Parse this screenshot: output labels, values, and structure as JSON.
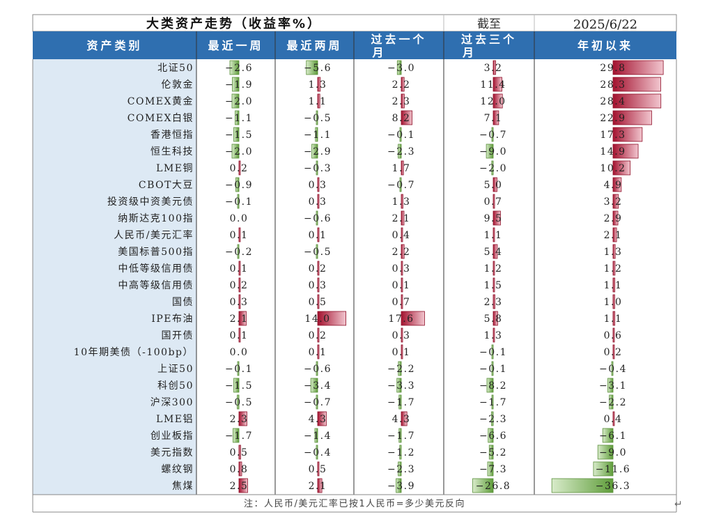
{
  "title": "大类资产走势（收益率%）",
  "date_label": "截至",
  "date_value": "2025/6/22",
  "note": "注：人民币/美元汇率已按1人民币=多少美元反向",
  "colors": {
    "header_bg": "#2f6fb0",
    "label_bg": "#dde9f4",
    "positive": "#a3122f",
    "negative": "#70ad47"
  },
  "chart_data": {
    "type": "table",
    "columns": [
      "资产类别",
      "最近一周",
      "最近两周",
      "过去一个月",
      "过去三个月",
      "年初以来"
    ],
    "rows": [
      {
        "asset": "北证50",
        "values": [
          -2.6,
          -5.6,
          -3.0,
          3.2,
          29.8
        ]
      },
      {
        "asset": "伦敦金",
        "values": [
          -1.9,
          1.3,
          2.2,
          11.4,
          28.3
        ]
      },
      {
        "asset": "COMEX黄金",
        "values": [
          -2.0,
          1.1,
          2.3,
          12.0,
          28.4
        ]
      },
      {
        "asset": "COMEX白银",
        "values": [
          -1.1,
          -0.5,
          8.2,
          7.1,
          22.9
        ]
      },
      {
        "asset": "香港恒指",
        "values": [
          -1.5,
          -1.1,
          -0.1,
          -0.7,
          17.3
        ]
      },
      {
        "asset": "恒生科技",
        "values": [
          -2.0,
          -2.9,
          -2.3,
          -9.0,
          14.9
        ]
      },
      {
        "asset": "LME铜",
        "values": [
          0.2,
          -0.3,
          1.7,
          -2.0,
          10.2
        ]
      },
      {
        "asset": "CBOT大豆",
        "values": [
          -0.9,
          0.3,
          -0.7,
          5.0,
          4.9
        ]
      },
      {
        "asset": "投资级中资美元债",
        "values": [
          -0.1,
          0.3,
          1.3,
          0.7,
          3.2
        ]
      },
      {
        "asset": "纳斯达克100指",
        "values": [
          0.0,
          -0.6,
          2.1,
          9.5,
          2.9
        ]
      },
      {
        "asset": "人民币/美元汇率",
        "values": [
          0.1,
          0.1,
          0.4,
          1.1,
          2.1
        ]
      },
      {
        "asset": "美国标普500指",
        "values": [
          -0.2,
          -0.5,
          2.2,
          5.4,
          1.3
        ]
      },
      {
        "asset": "中低等级信用债",
        "values": [
          0.1,
          0.2,
          0.3,
          1.2,
          1.2
        ]
      },
      {
        "asset": "中高等级信用债",
        "values": [
          0.2,
          0.3,
          0.1,
          1.5,
          1.1
        ]
      },
      {
        "asset": "国债",
        "values": [
          0.3,
          0.5,
          0.7,
          2.3,
          1.0
        ]
      },
      {
        "asset": "IPE布油",
        "values": [
          2.1,
          14.0,
          17.6,
          5.8,
          1.1
        ]
      },
      {
        "asset": "国开债",
        "values": [
          0.1,
          0.2,
          0.3,
          1.3,
          0.6
        ]
      },
      {
        "asset": "10年期美债（-100bp）",
        "values": [
          0.0,
          0.1,
          0.1,
          -0.1,
          0.2
        ]
      },
      {
        "asset": "上证50",
        "values": [
          -0.1,
          -0.6,
          -2.2,
          -0.1,
          -0.4
        ]
      },
      {
        "asset": "科创50",
        "values": [
          -1.5,
          -3.4,
          -3.3,
          -8.2,
          -3.1
        ]
      },
      {
        "asset": "沪深300",
        "values": [
          -0.5,
          -0.7,
          -1.7,
          -1.7,
          -2.2
        ]
      },
      {
        "asset": "LME铝",
        "values": [
          2.3,
          4.3,
          4.3,
          -2.3,
          0.4
        ]
      },
      {
        "asset": "创业板指",
        "values": [
          -1.7,
          -1.4,
          -1.7,
          -6.6,
          -6.1
        ]
      },
      {
        "asset": "美元指数",
        "values": [
          0.5,
          -0.4,
          -1.2,
          -5.2,
          -9.0
        ]
      },
      {
        "asset": "螺纹钢",
        "values": [
          0.8,
          0.5,
          -2.3,
          -7.3,
          -11.6
        ]
      },
      {
        "asset": "焦煤",
        "values": [
          2.5,
          2.1,
          -3.9,
          -26.8,
          -36.3
        ]
      }
    ]
  }
}
